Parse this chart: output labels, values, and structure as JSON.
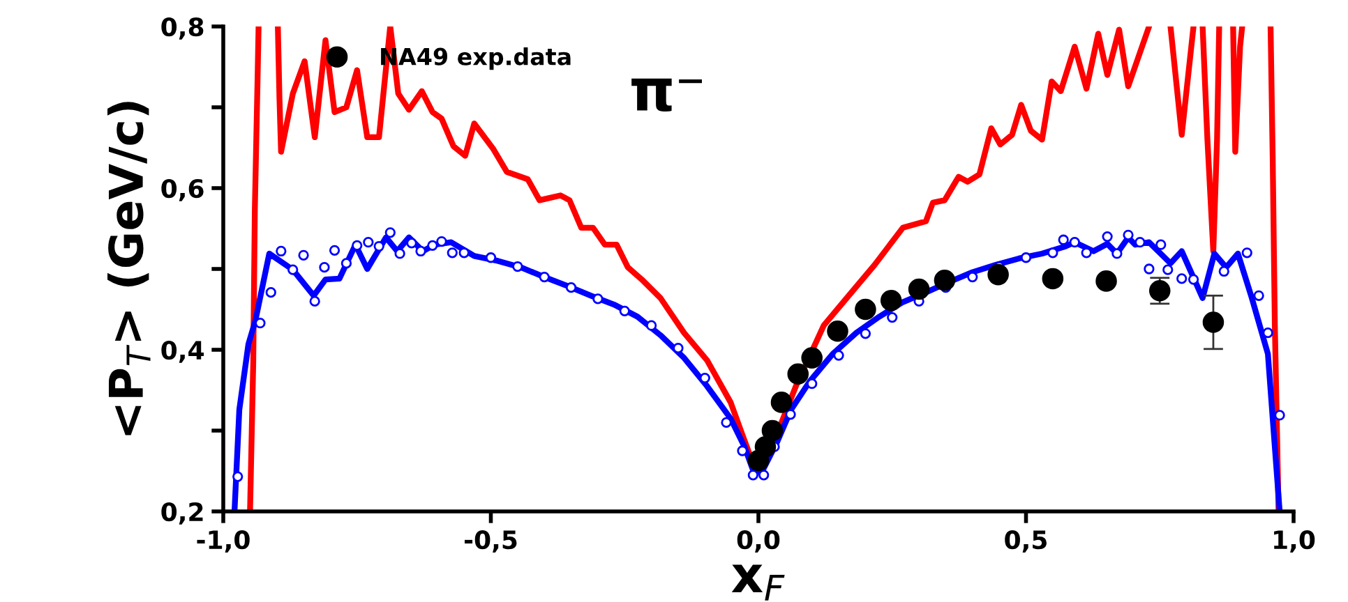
{
  "chart_data": {
    "type": "line",
    "xlabel": "x$_{F}$",
    "ylabel": "<P$_{T}$> (GeV/c)",
    "annotations": [
      "π⁻"
    ],
    "xlim": [
      -1.0,
      1.0
    ],
    "ylim": [
      0.2,
      0.8
    ],
    "xticks": [
      {
        "value": -1.0,
        "label": "-1,0"
      },
      {
        "value": -0.5,
        "label": "-0,5"
      },
      {
        "value": 0.0,
        "label": "0,0"
      },
      {
        "value": 0.5,
        "label": "0,5"
      },
      {
        "value": 1.0,
        "label": "1,0"
      }
    ],
    "yticks": [
      {
        "value": 0.2,
        "label": "0,2"
      },
      {
        "value": 0.3,
        "label": null
      },
      {
        "value": 0.4,
        "label": "0,4"
      },
      {
        "value": 0.5,
        "label": null
      },
      {
        "value": 0.6,
        "label": "0,6"
      },
      {
        "value": 0.7,
        "label": null
      },
      {
        "value": 0.8,
        "label": "0,8"
      }
    ],
    "grid": false,
    "legend": "top left",
    "series": [
      {
        "color": "#ff0000",
        "x": [
          -0.95,
          -0.944,
          -0.941,
          -0.936,
          -0.934,
          -0.916,
          -0.898,
          -0.895,
          -0.892,
          -0.87,
          -0.848,
          -0.829,
          -0.809,
          -0.792,
          -0.77,
          -0.75,
          -0.731,
          -0.709,
          -0.688,
          -0.673,
          -0.653,
          -0.629,
          -0.609,
          -0.592,
          -0.57,
          -0.548,
          -0.531,
          -0.496,
          -0.47,
          -0.431,
          -0.409,
          -0.37,
          -0.353,
          -0.331,
          -0.309,
          -0.287,
          -0.265,
          -0.244,
          -0.218,
          -0.183,
          -0.139,
          -0.096,
          -0.052,
          -0.03,
          -0.01,
          0.009,
          0.013,
          0.039,
          0.07,
          0.122,
          0.165,
          0.217,
          0.27,
          0.313,
          0.326,
          0.348,
          0.374,
          0.391,
          0.413,
          0.435,
          0.452,
          0.474,
          0.491,
          0.509,
          0.53,
          0.548,
          0.565,
          0.591,
          0.613,
          0.635,
          0.652,
          0.674,
          0.691,
          0.73,
          0.75,
          0.77,
          0.791,
          0.813,
          0.822,
          0.83,
          0.839,
          0.85,
          0.857,
          0.861,
          0.874,
          0.887,
          0.891,
          0.9,
          0.904,
          0.93,
          0.957,
          0.961,
          0.965,
          0.972
        ],
        "values": [
          0.2,
          0.384,
          0.574,
          0.732,
          0.8,
          null,
          0.8,
          0.711,
          0.645,
          0.717,
          0.757,
          0.663,
          0.783,
          0.694,
          0.7,
          0.746,
          0.663,
          0.663,
          0.8,
          0.717,
          0.697,
          0.72,
          0.694,
          0.686,
          0.652,
          0.64,
          0.68,
          0.649,
          0.62,
          0.611,
          0.585,
          0.591,
          0.585,
          0.551,
          0.551,
          0.53,
          0.53,
          0.502,
          0.487,
          0.464,
          0.421,
          0.387,
          0.335,
          0.295,
          0.259,
          0.259,
          0.26,
          0.303,
          0.355,
          0.43,
          0.464,
          0.505,
          0.551,
          0.559,
          0.582,
          0.585,
          0.614,
          0.608,
          0.617,
          0.674,
          0.654,
          0.666,
          0.703,
          0.671,
          0.66,
          0.732,
          0.72,
          0.775,
          0.723,
          0.791,
          0.74,
          0.796,
          0.726,
          0.8,
          null,
          0.8,
          0.666,
          0.8,
          null,
          0.8,
          0.66,
          0.522,
          0.66,
          0.8,
          null,
          0.8,
          0.645,
          0.775,
          0.8,
          null,
          0.8,
          0.637,
          0.43,
          0.2
        ]
      },
      {
        "type": "line",
        "color": "#0000ff",
        "x": [
          -0.979,
          -0.97,
          -0.953,
          -0.94,
          -0.914,
          -0.87,
          -0.831,
          -0.809,
          -0.783,
          -0.753,
          -0.731,
          -0.696,
          -0.675,
          -0.653,
          -0.627,
          -0.605,
          -0.574,
          -0.531,
          -0.487,
          -0.444,
          -0.4,
          -0.357,
          -0.313,
          -0.27,
          -0.226,
          -0.183,
          -0.139,
          -0.096,
          -0.052,
          -0.026,
          -0.009,
          0.004,
          0.009,
          0.035,
          0.061,
          0.096,
          0.139,
          0.183,
          0.226,
          0.27,
          0.313,
          0.357,
          0.4,
          0.443,
          0.487,
          0.53,
          0.574,
          0.591,
          0.626,
          0.652,
          0.67,
          0.691,
          0.704,
          0.73,
          0.77,
          0.791,
          0.83,
          0.852,
          0.874,
          0.896,
          0.922,
          0.952,
          0.961,
          0.974
        ],
        "values": [
          0.2,
          0.326,
          0.407,
          0.436,
          0.519,
          0.499,
          0.467,
          0.487,
          0.488,
          0.53,
          0.5,
          0.539,
          0.522,
          0.539,
          0.522,
          0.53,
          0.533,
          0.516,
          0.51,
          0.502,
          0.49,
          0.479,
          0.467,
          0.456,
          0.441,
          0.418,
          0.39,
          0.355,
          0.315,
          0.28,
          0.249,
          0.249,
          0.252,
          0.286,
          0.326,
          0.361,
          0.395,
          0.421,
          0.441,
          0.459,
          0.471,
          0.484,
          0.496,
          0.505,
          0.513,
          0.519,
          0.528,
          0.533,
          0.522,
          0.531,
          0.519,
          0.539,
          0.53,
          0.533,
          0.507,
          0.522,
          0.464,
          0.519,
          0.502,
          0.519,
          0.464,
          0.395,
          0.315,
          0.2
        ]
      },
      {
        "type": "scatter",
        "color": "#0000ff",
        "marker": "circle",
        "x": [
          -0.973,
          -0.931,
          -0.911,
          -0.892,
          -0.87,
          -0.85,
          -0.829,
          -0.811,
          -0.792,
          -0.77,
          -0.75,
          -0.729,
          -0.709,
          -0.688,
          -0.67,
          -0.648,
          -0.631,
          -0.609,
          -0.592,
          -0.572,
          -0.55,
          -0.5,
          -0.45,
          -0.4,
          -0.35,
          -0.3,
          -0.25,
          -0.2,
          -0.15,
          -0.1,
          -0.06,
          -0.03,
          -0.01,
          0.01,
          0.03,
          0.06,
          0.1,
          0.15,
          0.2,
          0.25,
          0.3,
          0.35,
          0.4,
          0.45,
          0.5,
          0.55,
          0.57,
          0.591,
          0.613,
          0.652,
          0.67,
          0.691,
          0.713,
          0.73,
          0.752,
          0.765,
          0.791,
          0.813,
          0.87,
          0.913,
          0.935,
          0.952,
          0.974
        ],
        "values": [
          0.243,
          0.433,
          0.471,
          0.522,
          0.499,
          0.517,
          0.46,
          0.502,
          0.523,
          0.507,
          0.529,
          0.533,
          0.528,
          0.545,
          0.519,
          0.532,
          0.522,
          0.529,
          0.534,
          0.52,
          0.52,
          0.514,
          0.503,
          0.49,
          0.477,
          0.463,
          0.448,
          0.43,
          0.402,
          0.365,
          0.31,
          0.275,
          0.245,
          0.245,
          0.28,
          0.32,
          0.358,
          0.393,
          0.42,
          0.44,
          0.46,
          0.477,
          0.49,
          0.503,
          0.514,
          0.52,
          0.536,
          0.533,
          0.52,
          0.54,
          0.519,
          0.542,
          0.533,
          0.5,
          0.53,
          0.499,
          0.488,
          0.487,
          0.497,
          0.52,
          0.467,
          0.421,
          0.319
        ]
      },
      {
        "type": "scatter",
        "name": "NA49 exp.data",
        "color": "#000000",
        "marker": "circle",
        "x": [
          0.0,
          0.013,
          0.026,
          0.043,
          0.074,
          0.1,
          0.148,
          0.2,
          0.248,
          0.3,
          0.348,
          0.448,
          0.55,
          0.65,
          0.75,
          0.85
        ],
        "values": [
          0.263,
          0.28,
          0.3,
          0.335,
          0.37,
          0.39,
          0.423,
          0.45,
          0.461,
          0.475,
          0.486,
          0.493,
          0.488,
          0.485,
          0.473,
          0.434
        ],
        "errors": [
          null,
          null,
          null,
          null,
          null,
          null,
          null,
          null,
          null,
          null,
          null,
          null,
          null,
          null,
          0.016,
          0.033
        ]
      }
    ]
  }
}
